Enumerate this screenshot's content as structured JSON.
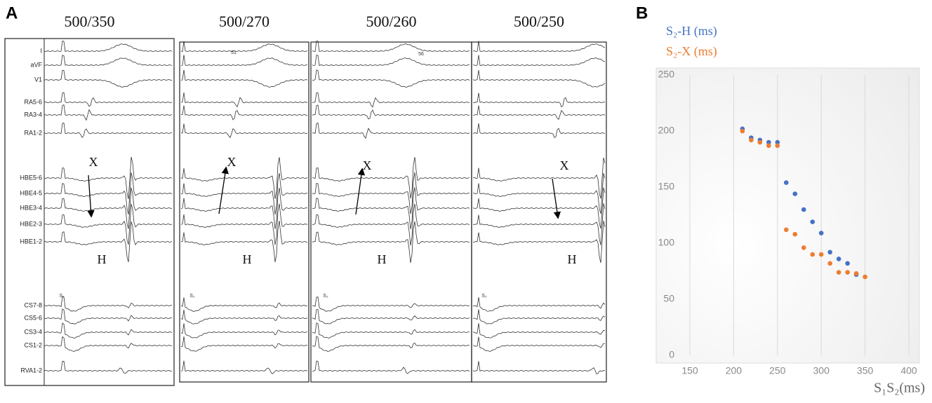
{
  "panel_a": {
    "label": "A",
    "channels": [
      "I",
      "aVF",
      "V1",
      "RA5-6",
      "RA3-4",
      "RA1-2",
      "HBE5-6",
      "HBE4-5",
      "HBE3-4",
      "HBE2-3",
      "HBE1-2",
      "CS7-8",
      "CS5-6",
      "CS3-4",
      "CS1-2",
      "RVA1-2"
    ],
    "panels": [
      {
        "title": "500/350",
        "x_label": "X",
        "h_label": "H",
        "stim": "S₁"
      },
      {
        "title": "500/270",
        "x_label": "X",
        "h_label": "H",
        "stim": "S₂",
        "marker": "51"
      },
      {
        "title": "500/260",
        "x_label": "X",
        "h_label": "H",
        "stim": "S₂",
        "marker": "56"
      },
      {
        "title": "500/250",
        "x_label": "X",
        "h_label": "H",
        "stim": "S₂"
      }
    ]
  },
  "chart_data": {
    "type": "scatter",
    "panel_label": "B",
    "x_label": "S₁S₂(ms)",
    "xlim": [
      150,
      400
    ],
    "xticks": [
      150,
      200,
      250,
      300,
      350,
      400
    ],
    "ylim": [
      0,
      250
    ],
    "yticks": [
      0,
      50,
      100,
      150,
      200,
      250
    ],
    "grid": true,
    "series": [
      {
        "name": "S₂-H (ms)",
        "color": "#4472c4",
        "x": [
          210,
          220,
          230,
          240,
          250,
          260,
          270,
          280,
          290,
          300,
          310,
          320,
          330,
          340
        ],
        "values": [
          202,
          194,
          192,
          190,
          190,
          154,
          144,
          130,
          119,
          109,
          92,
          86,
          82,
          72
        ]
      },
      {
        "name": "S₂-X (ms)",
        "color": "#ed7d31",
        "x": [
          210,
          220,
          230,
          240,
          250,
          260,
          270,
          280,
          290,
          300,
          310,
          320,
          330,
          340,
          350
        ],
        "values": [
          200,
          192,
          190,
          187,
          187,
          112,
          108,
          96,
          90,
          90,
          82,
          74,
          74,
          73,
          70
        ]
      }
    ]
  }
}
